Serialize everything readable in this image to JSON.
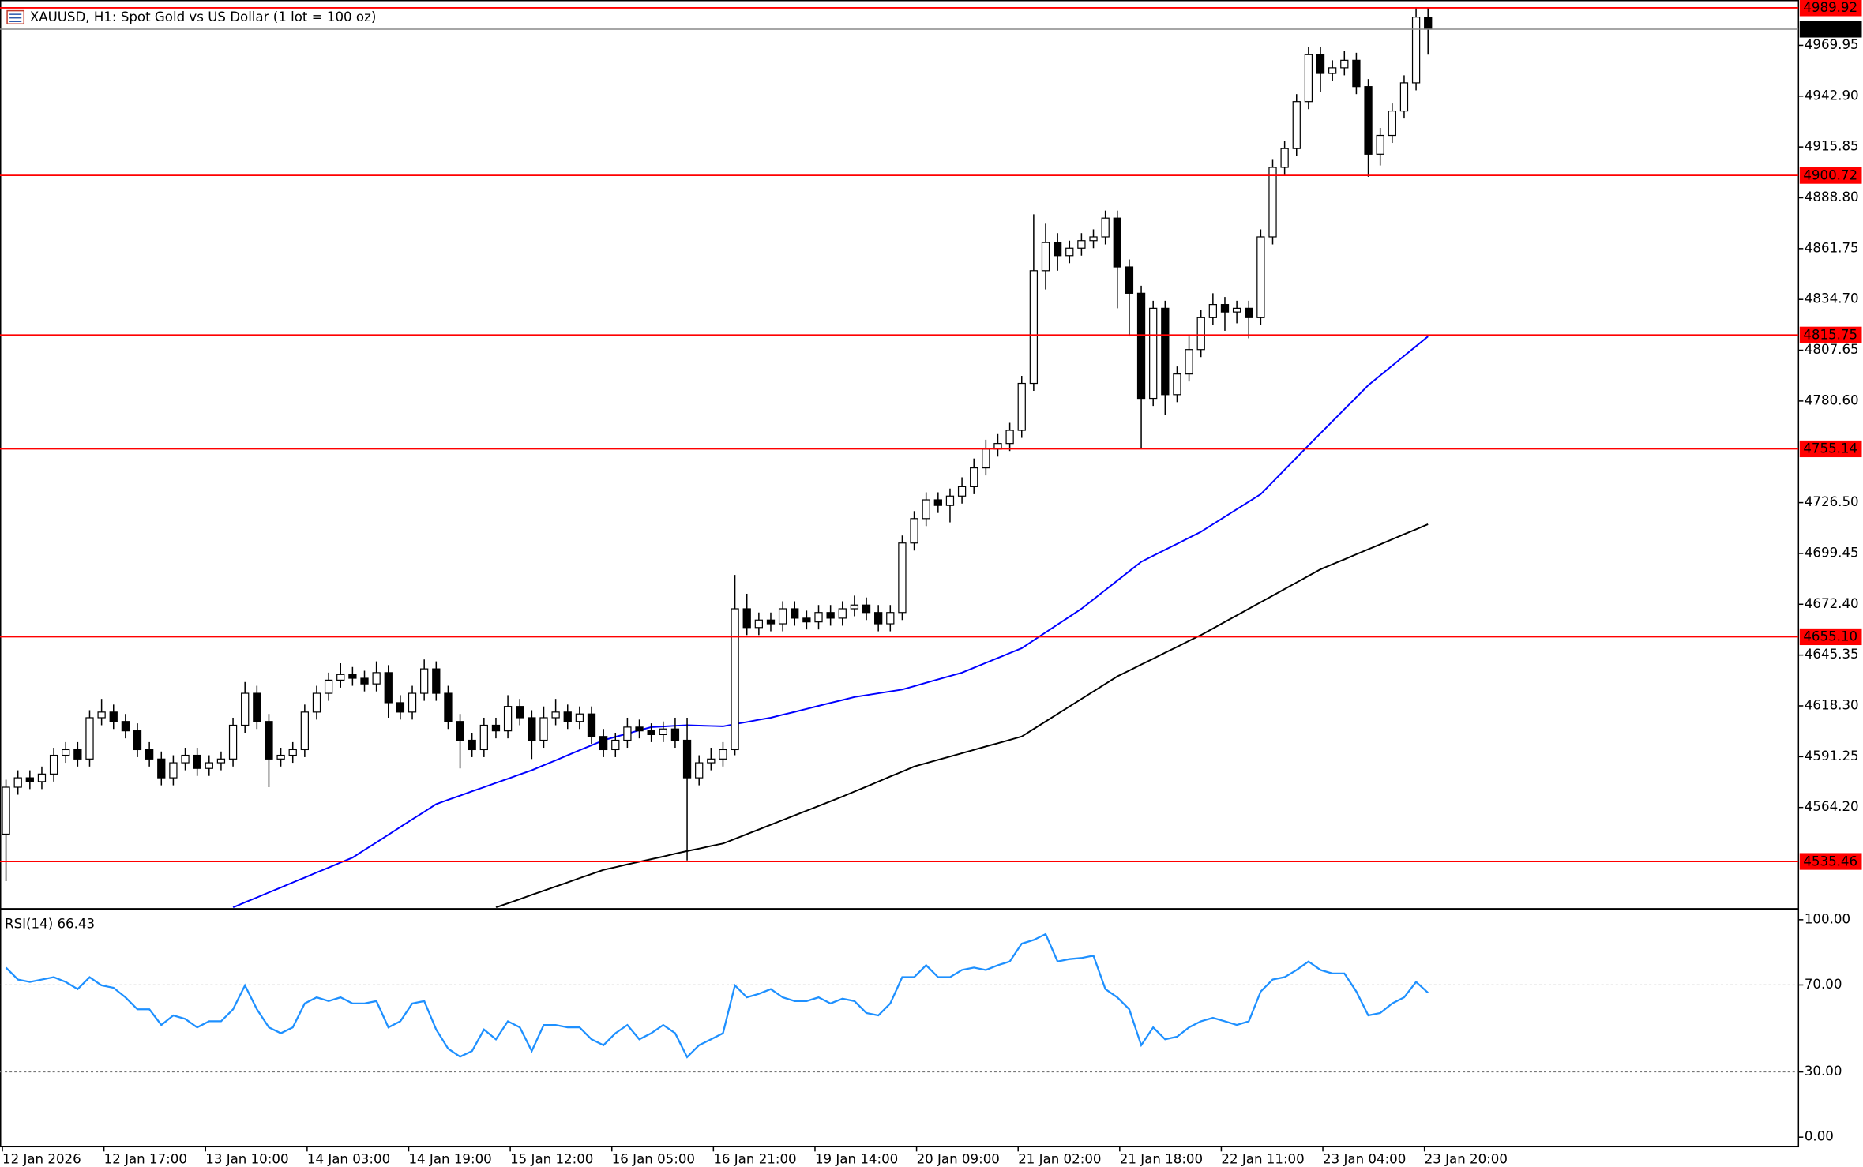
{
  "chart_data": [
    {
      "type": "candlestick",
      "title": "XAUUSD, H1:  Spot Gold vs US Dollar (1 lot = 100 oz)",
      "x_labels": [
        "12 Jan 2026",
        "12 Jan 17:00",
        "13 Jan 10:00",
        "14 Jan 03:00",
        "14 Jan 19:00",
        "15 Jan 12:00",
        "16 Jan 05:00",
        "16 Jan 21:00",
        "19 Jan 14:00",
        "20 Jan 09:00",
        "21 Jan 02:00",
        "21 Jan 18:00",
        "22 Jan 11:00",
        "23 Jan 04:00",
        "23 Jan 20:00"
      ],
      "open": [
        4550,
        4575,
        4580,
        4578,
        4582,
        4592,
        4595,
        4590,
        4612,
        4615,
        4610,
        4605,
        4595,
        4590,
        4580,
        4588,
        4592,
        4585,
        4588,
        4590,
        4608,
        4625,
        4610,
        4590,
        4592,
        4595,
        4615,
        4625,
        4632,
        4635,
        4633,
        4630,
        4636,
        4620,
        4615,
        4625,
        4638,
        4625,
        4610,
        4600,
        4595,
        4608,
        4605,
        4618,
        4612,
        4600,
        4612,
        4615,
        4610,
        4614,
        4602,
        4595,
        4600,
        4607,
        4605,
        4603,
        4606,
        4600,
        4580,
        4588,
        4590,
        4595,
        4670,
        4660,
        4664,
        4662,
        4670,
        4665,
        4663,
        4668,
        4665,
        4670,
        4672,
        4668,
        4662,
        4668,
        4705,
        4718,
        4728,
        4725,
        4730,
        4735,
        4745,
        4755,
        4758,
        4765,
        4790,
        4850,
        4865,
        4858,
        4862,
        4866,
        4868,
        4878,
        4852,
        4838,
        4782,
        4830,
        4784,
        4795,
        4808,
        4825,
        4832,
        4828,
        4830,
        4825,
        4868,
        4905,
        4915,
        4940,
        4965,
        4955,
        4958,
        4962,
        4948,
        4912,
        4922,
        4935,
        4950,
        4985
      ],
      "high": [
        4579,
        4584,
        4584,
        4586,
        4596,
        4599,
        4599,
        4616,
        4622,
        4619,
        4614,
        4609,
        4599,
        4594,
        4592,
        4596,
        4596,
        4592,
        4594,
        4612,
        4631,
        4629,
        4614,
        4596,
        4599,
        4619,
        4629,
        4636,
        4641,
        4639,
        4637,
        4642,
        4640,
        4624,
        4629,
        4643,
        4642,
        4629,
        4614,
        4604,
        4612,
        4612,
        4624,
        4622,
        4616,
        4618,
        4622,
        4619,
        4618,
        4618,
        4606,
        4604,
        4612,
        4611,
        4609,
        4610,
        4612,
        4612,
        4592,
        4596,
        4599,
        4688,
        4678,
        4668,
        4668,
        4674,
        4674,
        4669,
        4672,
        4672,
        4674,
        4677,
        4676,
        4672,
        4672,
        4709,
        4722,
        4732,
        4732,
        4734,
        4740,
        4750,
        4760,
        4763,
        4769,
        4794,
        4880,
        4875,
        4870,
        4866,
        4870,
        4872,
        4882,
        4882,
        4856,
        4842,
        4834,
        4834,
        4799,
        4815,
        4829,
        4838,
        4836,
        4834,
        4834,
        4872,
        4909,
        4919,
        4944,
        4969,
        4969,
        4962,
        4967,
        4966,
        4952,
        4926,
        4939,
        4954,
        4989.92,
        4990
      ],
      "low": [
        4525,
        4571,
        4574,
        4574,
        4578,
        4588,
        4586,
        4586,
        4608,
        4606,
        4601,
        4591,
        4586,
        4576,
        4576,
        4584,
        4581,
        4581,
        4584,
        4586,
        4604,
        4606,
        4575,
        4586,
        4588,
        4591,
        4611,
        4621,
        4628,
        4629,
        4626,
        4626,
        4612,
        4611,
        4611,
        4621,
        4621,
        4606,
        4585,
        4591,
        4591,
        4601,
        4601,
        4608,
        4590,
        4596,
        4608,
        4606,
        4606,
        4598,
        4591,
        4591,
        4596,
        4601,
        4599,
        4599,
        4596,
        4536,
        4576,
        4584,
        4586,
        4592,
        4656,
        4656,
        4658,
        4658,
        4661,
        4659,
        4659,
        4661,
        4661,
        4666,
        4664,
        4658,
        4658,
        4664,
        4701,
        4714,
        4721,
        4716,
        4726,
        4731,
        4741,
        4751,
        4754,
        4761,
        4786,
        4840,
        4850,
        4854,
        4858,
        4862,
        4864,
        4830,
        4815,
        4755,
        4778,
        4773,
        4780,
        4791,
        4804,
        4821,
        4818,
        4822,
        4814,
        4821,
        4864,
        4901,
        4911,
        4936,
        4945,
        4951,
        4954,
        4944,
        4900,
        4906,
        4918,
        4931,
        4946,
        4965
      ],
      "close": [
        4575,
        4580,
        4578,
        4582,
        4592,
        4595,
        4590,
        4612,
        4615,
        4610,
        4605,
        4595,
        4590,
        4580,
        4588,
        4592,
        4585,
        4588,
        4590,
        4608,
        4625,
        4610,
        4590,
        4592,
        4595,
        4615,
        4625,
        4632,
        4635,
        4633,
        4630,
        4636,
        4620,
        4615,
        4625,
        4638,
        4625,
        4610,
        4600,
        4595,
        4608,
        4605,
        4618,
        4612,
        4600,
        4612,
        4615,
        4610,
        4614,
        4602,
        4595,
        4600,
        4607,
        4605,
        4603,
        4606,
        4600,
        4580,
        4588,
        4590,
        4595,
        4670,
        4660,
        4664,
        4662,
        4670,
        4665,
        4663,
        4668,
        4665,
        4670,
        4672,
        4668,
        4662,
        4668,
        4705,
        4718,
        4728,
        4725,
        4730,
        4735,
        4745,
        4755,
        4758,
        4765,
        4790,
        4850,
        4865,
        4858,
        4862,
        4866,
        4868,
        4878,
        4852,
        4838,
        4782,
        4830,
        4784,
        4795,
        4808,
        4825,
        4832,
        4828,
        4830,
        4825,
        4868,
        4905,
        4915,
        4940,
        4965,
        4955,
        4958,
        4962,
        4948,
        4912,
        4922,
        4935,
        4950,
        4985,
        4978.57
      ],
      "up_color": "#ffffff",
      "down_color": "#000000",
      "overlays": [
        {
          "color": "#0000ff",
          "values": [
            null,
            null,
            null,
            null,
            null,
            null,
            null,
            null,
            null,
            null,
            null,
            null,
            null,
            null,
            null,
            null,
            null,
            null,
            null,
            4511,
            4513.7,
            4516.3,
            4519,
            4521.6,
            4524.3,
            4526.9,
            4529.6,
            4532.2,
            4534.9,
            4537.5,
            4541.6,
            4545.6,
            4549.7,
            4553.8,
            4557.9,
            4561.9,
            4566,
            4568.3,
            4570.5,
            4572.8,
            4575,
            4577.3,
            4579.5,
            4581.8,
            4584,
            4586.7,
            4589.3,
            4592,
            4594.7,
            4597.3,
            4600,
            4601.8,
            4603.5,
            4605.3,
            4607,
            4607.3,
            4607.7,
            4608,
            4607.8,
            4607.6,
            4607.4,
            4608.6,
            4609.7,
            4610.9,
            4612,
            4613.6,
            4615.1,
            4616.7,
            4618.3,
            4619.9,
            4621.4,
            4623,
            4624,
            4625,
            4626,
            4627,
            4628.8,
            4630.6,
            4632.4,
            4634.2,
            4636,
            4638.6,
            4641.2,
            4643.8,
            4646.4,
            4649,
            4653.2,
            4657.4,
            4661.6,
            4665.8,
            4670,
            4675,
            4680,
            4685,
            4690,
            4695,
            4698.2,
            4701.4,
            4704.6,
            4707.8,
            4711,
            4715,
            4719,
            4723,
            4727,
            4731,
            4737.5,
            4744,
            4750.5,
            4757,
            4763.4,
            4769.8,
            4776.2,
            4782.6,
            4789,
            4794.2,
            4799.4,
            4804.6,
            4809.8,
            4815
          ]
        },
        {
          "color": "#000000",
          "values": [
            null,
            null,
            null,
            null,
            null,
            null,
            null,
            null,
            null,
            null,
            null,
            null,
            null,
            null,
            null,
            null,
            null,
            null,
            null,
            null,
            null,
            null,
            null,
            null,
            null,
            null,
            null,
            null,
            null,
            null,
            null,
            null,
            null,
            null,
            null,
            null,
            null,
            null,
            null,
            null,
            null,
            4511,
            4513.2,
            4515.4,
            4517.7,
            4519.9,
            4522.1,
            4524.3,
            4526.6,
            4528.8,
            4531,
            4532.4,
            4533.9,
            4535.3,
            4536.7,
            4538.1,
            4539.6,
            4541,
            4542.3,
            4543.7,
            4545,
            4547.5,
            4550,
            4552.5,
            4555,
            4557.5,
            4560,
            4562.5,
            4565,
            4567.5,
            4570,
            4572.7,
            4575.3,
            4578,
            4580.7,
            4583.3,
            4586,
            4587.8,
            4589.6,
            4591.3,
            4593.1,
            4594.9,
            4596.7,
            4598.4,
            4600.2,
            4602,
            4606,
            4610,
            4614,
            4618,
            4622,
            4626,
            4630,
            4634,
            4637.1,
            4640.3,
            4643.4,
            4646.6,
            4649.7,
            4652.9,
            4656,
            4659.5,
            4663,
            4666.5,
            4670,
            4673.5,
            4677,
            4680.5,
            4684,
            4687.5,
            4691,
            4693.7,
            4696.3,
            4699,
            4701.7,
            4704.3,
            4707,
            4709.7,
            4712.3,
            4715
          ]
        }
      ],
      "levels": [
        4989.92,
        4900.72,
        4815.75,
        4755.14,
        {
          "value": 4655.1,
          "label": "4655.10"
        },
        4535.46
      ],
      "level_color": "#ff0000",
      "current_price": 4978.57,
      "ylim": [
        4510.8,
        4994.1
      ],
      "yticks": [
        4969.95,
        {
          "value": 4942.9,
          "label": "4942.90"
        },
        4915.85,
        {
          "value": 4888.8,
          "label": "4888.80"
        },
        4861.75,
        {
          "value": 4834.7,
          "label": "4834.70"
        },
        4807.65,
        {
          "value": 4780.6,
          "label": "4780.60"
        },
        {
          "value": 4726.5,
          "label": "4726.50"
        },
        4699.45,
        {
          "value": 4672.4,
          "label": "4672.40"
        },
        4645.35,
        {
          "value": 4618.3,
          "label": "4618.30"
        },
        4591.25,
        {
          "value": 4564.2,
          "label": "4564.20"
        }
      ]
    },
    {
      "type": "line",
      "title": "RSI(14) 66.43",
      "color": "#1e90ff",
      "values": [
        78,
        72.5,
        71.4,
        72.5,
        73.6,
        71.4,
        68.1,
        73.6,
        69.8,
        68.7,
        64.3,
        58.8,
        58.8,
        51.6,
        56,
        54.4,
        50.5,
        53.3,
        53.3,
        58.8,
        69.8,
        58.8,
        50.5,
        47.8,
        50.5,
        61.5,
        64.3,
        62.6,
        64.3,
        61.5,
        61.5,
        62.6,
        50.5,
        53.3,
        61.5,
        62.6,
        49.5,
        40.7,
        37,
        39.6,
        49.5,
        45,
        53.3,
        50.5,
        39.6,
        51.6,
        51.6,
        50.5,
        50.5,
        45,
        42.3,
        47.8,
        51.6,
        45,
        47.8,
        51.6,
        47.8,
        36.8,
        42.3,
        45,
        47.8,
        69.8,
        64.3,
        65.9,
        68.1,
        64.3,
        62.6,
        62.6,
        64.3,
        61.5,
        63.7,
        62.6,
        57.1,
        56,
        61.5,
        73.6,
        73.6,
        79.1,
        73.6,
        73.6,
        76.9,
        78,
        76.9,
        79.1,
        80.8,
        89,
        90.7,
        93.4,
        80.8,
        81.9,
        82.4,
        83.5,
        68.1,
        64.3,
        58.8,
        42.3,
        50.5,
        45,
        46.2,
        50.5,
        53.3,
        54.9,
        53.3,
        51.6,
        53.3,
        67,
        72.5,
        73.6,
        76.9,
        80.8,
        76.9,
        75.3,
        75.3,
        67,
        56,
        57.1,
        61.5,
        64.3,
        71.4,
        66.43
      ],
      "levels": [
        70,
        30
      ],
      "ylim": [
        0,
        100
      ],
      "yticks": [
        {
          "value": 100,
          "label": "100.00"
        },
        {
          "value": 70,
          "label": "70.00"
        },
        {
          "value": 30,
          "label": "30.00"
        },
        {
          "value": 0,
          "label": "0.00"
        }
      ]
    }
  ]
}
